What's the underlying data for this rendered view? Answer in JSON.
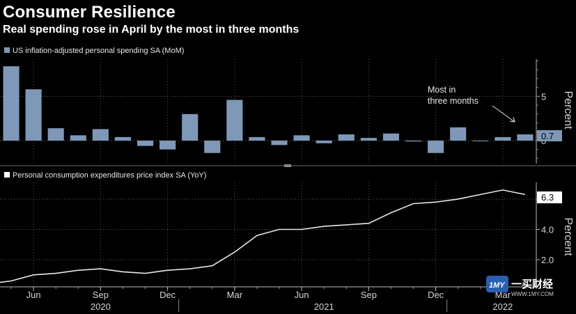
{
  "title": "Consumer Resilience",
  "subtitle": "Real spending rose in April by the most in three months",
  "watermark": {
    "logo": "1MY",
    "name": "一买财经",
    "url": "WWW.1MY.COM"
  },
  "chart_data": [
    {
      "type": "bar",
      "legend": "US inflation-adjusted personal spending SA (MoM)",
      "ylabel": "Percent",
      "yticks": [
        0,
        5
      ],
      "ylim": [
        -2.6,
        9.2
      ],
      "color": "#7f98b8",
      "last_value_label": "0.7",
      "annotation": [
        "Most in",
        "three months"
      ],
      "x": [
        "2020-05",
        "2020-06",
        "2020-07",
        "2020-08",
        "2020-09",
        "2020-10",
        "2020-11",
        "2020-12",
        "2021-01",
        "2021-02",
        "2021-03",
        "2021-04",
        "2021-05",
        "2021-06",
        "2021-07",
        "2021-08",
        "2021-09",
        "2021-10",
        "2021-11",
        "2021-12",
        "2022-01",
        "2022-02",
        "2022-03",
        "2022-04"
      ],
      "values": [
        8.4,
        5.8,
        1.4,
        0.6,
        1.3,
        0.4,
        -0.6,
        -1.0,
        3.0,
        -1.4,
        4.6,
        0.4,
        -0.5,
        0.6,
        -0.3,
        0.7,
        0.3,
        0.8,
        -0.1,
        -1.4,
        1.5,
        0.0,
        0.4,
        0.7
      ]
    },
    {
      "type": "line",
      "legend": "Personal consumption expenditures price index SA (YoY)",
      "ylabel": "Percent",
      "yticks": [
        2.0,
        4.0,
        6.0
      ],
      "ylim": [
        0.3,
        7.1
      ],
      "color": "#e8e8e8",
      "last_value_label": "6.3",
      "x": [
        "2020-05",
        "2020-06",
        "2020-07",
        "2020-08",
        "2020-09",
        "2020-10",
        "2020-11",
        "2020-12",
        "2021-01",
        "2021-02",
        "2021-03",
        "2021-04",
        "2021-05",
        "2021-06",
        "2021-07",
        "2021-08",
        "2021-09",
        "2021-10",
        "2021-11",
        "2021-12",
        "2022-01",
        "2022-02",
        "2022-03",
        "2022-04"
      ],
      "values": [
        0.6,
        1.0,
        1.1,
        1.3,
        1.4,
        1.2,
        1.1,
        1.3,
        1.4,
        1.6,
        2.5,
        3.6,
        4.0,
        4.0,
        4.2,
        4.3,
        4.4,
        5.1,
        5.7,
        5.8,
        6.0,
        6.3,
        6.6,
        6.3
      ]
    }
  ],
  "xaxis": {
    "months": [
      {
        "label": "Jun",
        "date": "2020-06"
      },
      {
        "label": "Sep",
        "date": "2020-09"
      },
      {
        "label": "Dec",
        "date": "2020-12"
      },
      {
        "label": "Mar",
        "date": "2021-03"
      },
      {
        "label": "Jun",
        "date": "2021-06"
      },
      {
        "label": "Sep",
        "date": "2021-09"
      },
      {
        "label": "Dec",
        "date": "2021-12"
      },
      {
        "label": "Mar",
        "date": "2022-03"
      }
    ],
    "years": [
      {
        "label": "2020",
        "date": "2020-09"
      },
      {
        "label": "2021",
        "date": "2021-07"
      },
      {
        "label": "2022",
        "date": "2022-03"
      }
    ]
  }
}
